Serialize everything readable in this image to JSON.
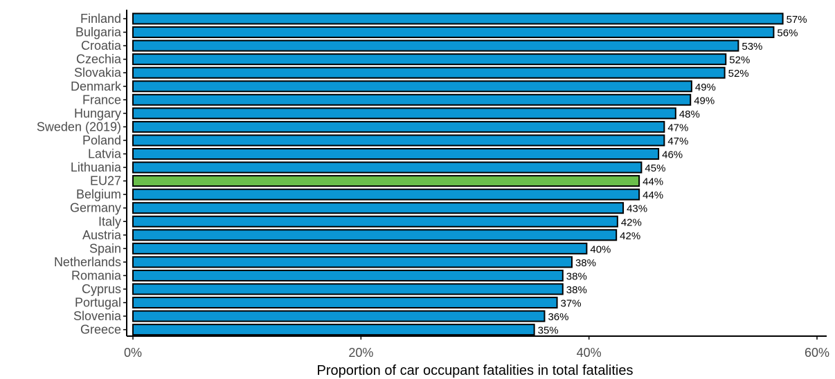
{
  "chart_data": {
    "type": "bar",
    "orientation": "horizontal",
    "title": "",
    "xlabel": "Proportion of car occupant fatalities in total fatalities",
    "ylabel": "",
    "xlim": [
      0,
      60
    ],
    "x_ticks": [
      0,
      20,
      40,
      60
    ],
    "x_tick_labels": [
      "0%",
      "20%",
      "40%",
      "60%"
    ],
    "grid": false,
    "categories": [
      "Finland",
      "Bulgaria",
      "Croatia",
      "Czechia",
      "Slovakia",
      "Denmark",
      "France",
      "Hungary",
      "Sweden (2019)",
      "Poland",
      "Latvia",
      "Lithuania",
      "EU27",
      "Belgium",
      "Germany",
      "Italy",
      "Austria",
      "Spain",
      "Netherlands",
      "Romania",
      "Cyprus",
      "Portugal",
      "Slovenia",
      "Greece"
    ],
    "values": [
      57,
      56.2,
      53.1,
      52,
      51.9,
      49,
      48.9,
      47.6,
      46.6,
      46.6,
      46.1,
      44.6,
      44.4,
      44.4,
      43,
      42.5,
      42.4,
      39.8,
      38.5,
      37.7,
      37.7,
      37.2,
      36.1,
      35.2
    ],
    "data_labels": [
      "57%",
      "56%",
      "53%",
      "52%",
      "52%",
      "49%",
      "49%",
      "48%",
      "47%",
      "47%",
      "46%",
      "45%",
      "44%",
      "44%",
      "43%",
      "42%",
      "42%",
      "40%",
      "38%",
      "38%",
      "38%",
      "37%",
      "36%",
      "35%"
    ],
    "colors": {
      "default": "#0b96d4",
      "highlight": "#6abf4b",
      "outline": "#000000"
    },
    "highlight_category": "EU27"
  }
}
